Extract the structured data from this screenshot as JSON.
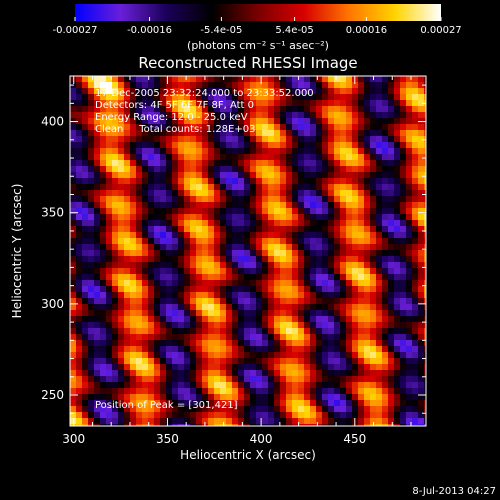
{
  "chart_data": {
    "type": "heatmap",
    "title": "Reconstructed RHESSI Image",
    "xlabel": "Heliocentric X (arcsec)",
    "ylabel": "Heliocentric Y (arcsec)",
    "xlim": [
      298,
      488
    ],
    "ylim": [
      233,
      425
    ],
    "x_ticks": [
      300,
      350,
      400,
      450
    ],
    "y_ticks": [
      250,
      300,
      350,
      400
    ],
    "colorbar": {
      "min": -0.00027,
      "max": 0.00027,
      "tick_values": [
        -0.00027,
        -0.00016,
        -5.4e-05,
        5.4e-05,
        0.00016,
        0.00027
      ],
      "tick_labels": [
        "-0.00027",
        "-0.00016",
        "-5.4e-05",
        "5.4e-05",
        "0.00016",
        "0.00027"
      ],
      "units_label": "(photons cm⁻² s⁻¹ asec⁻²)",
      "colormap": [
        "#0000ff",
        "#6a1fd8",
        "#1a0058",
        "#000000",
        "#7a0000",
        "#d80000",
        "#ff7700",
        "#ffd400",
        "#ffffff"
      ]
    },
    "annotations": {
      "time_range": "17-Dec-2005 23:32:24.000 to 23:33:52.000",
      "detectors": "Detectors: 4F 5F 6F 7F 8F, Att 0",
      "energy_range": "Energy Range: 12.0 - 25.0 keV",
      "method_and_counts": "Clean     Total counts: 1.28E+03",
      "peak_position": "Position of Peak = [301,421]"
    },
    "peak": [
      301,
      421
    ]
  },
  "footer_timestamp": "8-Jul-2013 04:27"
}
